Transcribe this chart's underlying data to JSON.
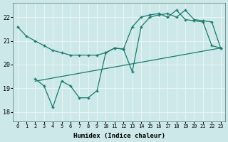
{
  "xlabel": "Humidex (Indice chaleur)",
  "ylabel": "",
  "xlim": [
    -0.5,
    23.5
  ],
  "ylim": [
    17.6,
    22.6
  ],
  "yticks": [
    18,
    19,
    20,
    21,
    22
  ],
  "xticks": [
    0,
    1,
    2,
    3,
    4,
    5,
    6,
    7,
    8,
    9,
    10,
    11,
    12,
    13,
    14,
    15,
    16,
    17,
    18,
    19,
    20,
    21,
    22,
    23
  ],
  "bg_color": "#cde8e8",
  "grid_color": "#e8f5f5",
  "line_color": "#1a7a6e",
  "line1_x": [
    0,
    1,
    2,
    3,
    4,
    5,
    6,
    7,
    8,
    9,
    10,
    11,
    12,
    13,
    14,
    15,
    16,
    17,
    18,
    19,
    20,
    21,
    22,
    23
  ],
  "line1_y": [
    21.6,
    21.2,
    21.0,
    20.8,
    20.6,
    20.5,
    20.4,
    20.4,
    20.4,
    20.4,
    20.5,
    20.7,
    20.65,
    21.6,
    22.0,
    22.1,
    22.15,
    22.0,
    22.3,
    21.9,
    21.85,
    21.8,
    20.8,
    20.7
  ],
  "line2_x": [
    2,
    3,
    4,
    5,
    6,
    7,
    8,
    9,
    10,
    11,
    12,
    13,
    14,
    15,
    16,
    17,
    18,
    19,
    20,
    21,
    22,
    23
  ],
  "line2_y": [
    19.4,
    19.1,
    18.2,
    19.3,
    19.1,
    18.6,
    18.6,
    18.9,
    20.5,
    20.7,
    20.65,
    19.7,
    21.6,
    22.0,
    22.1,
    22.15,
    22.0,
    22.3,
    21.9,
    21.85,
    21.8,
    20.7
  ],
  "line3_x": [
    2,
    23
  ],
  "line3_y": [
    19.3,
    20.7
  ]
}
